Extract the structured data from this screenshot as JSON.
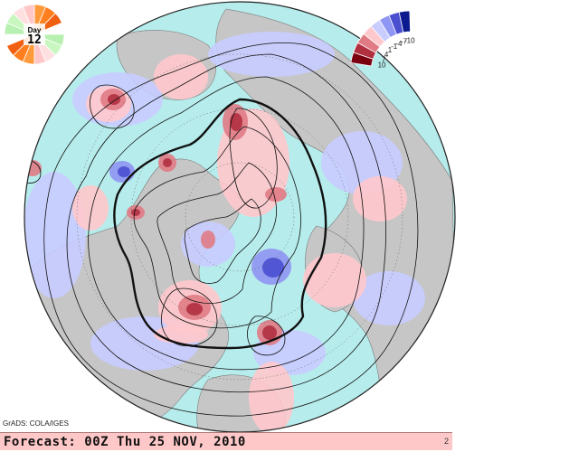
{
  "day_badge": {
    "label": "Day",
    "number": "12",
    "colors": [
      "#ff9a3c",
      "#ff7f1e",
      "#f06010",
      "#ffffff",
      "#b7f0b0",
      "#c8f7c0",
      "#ffe0e0",
      "#ffc7c7"
    ]
  },
  "legend": {
    "labels": [
      "10",
      "7",
      "4",
      "1",
      "-1",
      "-4",
      "-7",
      "-10"
    ],
    "colors": [
      "#7a0010",
      "#b03040",
      "#e07b85",
      "#ffc8cc",
      "#c8ccff",
      "#8f95f2",
      "#4a4fd0",
      "#0b1a8f"
    ]
  },
  "colors": {
    "ocean": "#b7ecec",
    "land": "#c6c6c6",
    "coast": "#7a7a7a",
    "contour": "#111111"
  },
  "footer": {
    "credit": "GrADS: COLA/IGES",
    "forecast": "Forecast: 00Z Thu 25 NOV, 2010",
    "right_mark": "2"
  }
}
